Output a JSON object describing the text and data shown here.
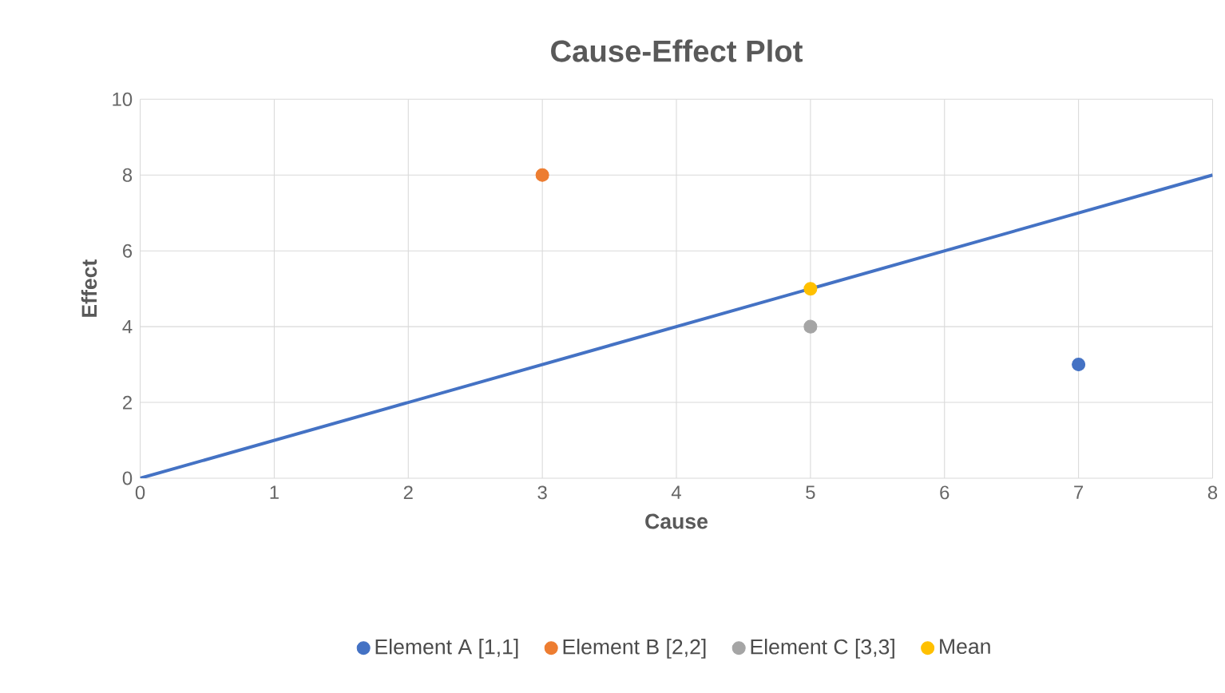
{
  "chart_data": {
    "type": "scatter",
    "title": "Cause-Effect Plot",
    "xlabel": "Cause",
    "ylabel": "Effect",
    "xlim": [
      0,
      8
    ],
    "ylim": [
      0,
      10
    ],
    "xticks": [
      0,
      1,
      2,
      3,
      4,
      5,
      6,
      7,
      8
    ],
    "yticks": [
      0,
      2,
      4,
      6,
      8,
      10
    ],
    "grid": true,
    "legend": "bottom",
    "series": [
      {
        "type": "line",
        "marker": "none",
        "color": "#4472c4",
        "x": [
          0,
          8
        ],
        "values": [
          0,
          8
        ]
      },
      {
        "name": "Element A [1,1]",
        "marker": "circle",
        "color": "#4472c4",
        "x": [
          7
        ],
        "values": [
          3
        ]
      },
      {
        "name": "Element B [2,2]",
        "marker": "circle",
        "color": "#ed7d31",
        "x": [
          3
        ],
        "values": [
          8
        ]
      },
      {
        "name": "Element C [3,3]",
        "marker": "circle",
        "color": "#a5a5a5",
        "x": [
          5
        ],
        "values": [
          4
        ]
      },
      {
        "name": "Mean",
        "marker": "circle",
        "color": "#ffc000",
        "x": [
          5
        ],
        "values": [
          5
        ]
      }
    ]
  }
}
